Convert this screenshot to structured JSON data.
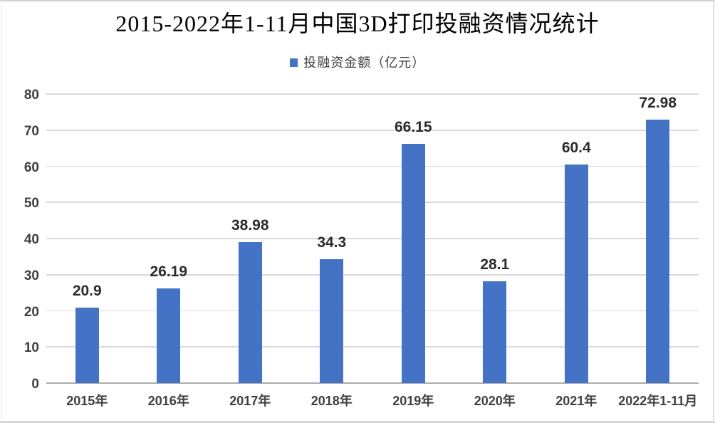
{
  "chart_data": {
    "type": "bar",
    "title": "2015-2022年1-11月中国3D打印投融资情况统计",
    "categories": [
      "2015年",
      "2016年",
      "2017年",
      "2018年",
      "2019年",
      "2020年",
      "2021年",
      "2022年1-11月"
    ],
    "series": [
      {
        "name": "投融资金额（亿元）",
        "values": [
          20.9,
          26.19,
          38.98,
          34.3,
          66.15,
          28.1,
          60.4,
          72.98
        ],
        "data_labels": [
          "20.9",
          "26.19",
          "38.98",
          "34.3",
          "66.15",
          "28.1",
          "60.4",
          "72.98"
        ]
      }
    ],
    "xlabel": "",
    "ylabel": "",
    "ylim": [
      0,
      80
    ],
    "yticks": [
      0,
      10,
      20,
      30,
      40,
      50,
      60,
      70,
      80
    ],
    "grid": true,
    "legend_position": "top",
    "colors": {
      "bar": "#4472C4",
      "gridline": "#dadada",
      "axis_line": "#aeaeae",
      "title_text": "#000000",
      "tick_text": "#3f3f3f",
      "data_label_text": "#2b2b2b",
      "legend_text": "#404040"
    }
  }
}
